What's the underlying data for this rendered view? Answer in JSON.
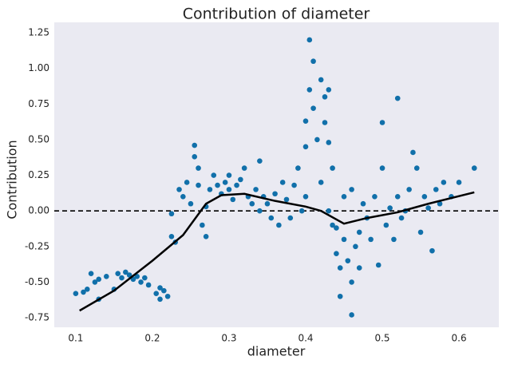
{
  "chart_data": {
    "type": "scatter",
    "title": "Contribution of diameter",
    "x_label": "diameter",
    "y_label": "Contribution",
    "xlim": [
      0.072,
      0.652
    ],
    "ylim": [
      -0.817,
      1.323
    ],
    "xticks": [
      0.1,
      0.2,
      0.3,
      0.4,
      0.5,
      0.6
    ],
    "yticks": [
      1.25,
      {
        "value": 1,
        "label": "1.00"
      },
      0.75,
      {
        "value": 0.5,
        "label": "0.50"
      },
      0.25,
      {
        "value": 0,
        "label": "0.00"
      },
      -0.25,
      {
        "value": -0.5,
        "label": "-0.50"
      },
      -0.75
    ],
    "grid": false,
    "hline": 0,
    "series": [
      {
        "color": "#1170aa",
        "x": [
          0.1,
          0.11,
          0.115,
          0.12,
          0.125,
          0.13,
          0.13,
          0.14,
          0.15,
          0.155,
          0.16,
          0.165,
          0.17,
          0.175,
          0.18,
          0.185,
          0.19,
          0.195,
          0.205,
          0.21,
          0.215,
          0.22,
          0.21,
          0.225,
          0.23,
          0.225,
          0.235,
          0.24,
          0.245,
          0.25,
          0.255,
          0.255,
          0.26,
          0.26,
          0.265,
          0.27,
          0.27,
          0.275,
          0.28,
          0.285,
          0.29,
          0.295,
          0.3,
          0.3,
          0.305,
          0.31,
          0.315,
          0.32,
          0.325,
          0.33,
          0.335,
          0.34,
          0.34,
          0.345,
          0.35,
          0.355,
          0.36,
          0.365,
          0.37,
          0.375,
          0.38,
          0.385,
          0.39,
          0.395,
          0.4,
          0.4,
          0.4,
          0.405,
          0.41,
          0.405,
          0.41,
          0.415,
          0.42,
          0.425,
          0.425,
          0.43,
          0.43,
          0.435,
          0.42,
          0.43,
          0.435,
          0.44,
          0.445,
          0.45,
          0.455,
          0.46,
          0.46,
          0.465,
          0.47,
          0.47,
          0.445,
          0.44,
          0.45,
          0.46,
          0.475,
          0.48,
          0.485,
          0.49,
          0.495,
          0.5,
          0.5,
          0.505,
          0.51,
          0.515,
          0.52,
          0.52,
          0.525,
          0.53,
          0.535,
          0.54,
          0.545,
          0.55,
          0.555,
          0.56,
          0.565,
          0.57,
          0.575,
          0.58,
          0.59,
          0.6,
          0.62
        ],
        "values": [
          -0.58,
          -0.57,
          -0.55,
          -0.44,
          -0.5,
          -0.62,
          -0.48,
          -0.46,
          -0.55,
          -0.44,
          -0.47,
          -0.43,
          -0.45,
          -0.48,
          -0.46,
          -0.5,
          -0.47,
          -0.52,
          -0.58,
          -0.62,
          -0.56,
          -0.6,
          -0.54,
          -0.18,
          -0.22,
          -0.02,
          0.15,
          0.1,
          0.2,
          0.05,
          0.46,
          0.38,
          0.3,
          0.18,
          -0.1,
          -0.18,
          0.03,
          0.15,
          0.25,
          0.18,
          0.12,
          0.2,
          0.15,
          0.25,
          0.08,
          0.18,
          0.22,
          0.3,
          0.1,
          0.05,
          0.15,
          0.35,
          0,
          0.1,
          0.05,
          -0.05,
          0.12,
          -0.1,
          0.2,
          0.08,
          -0.05,
          0.18,
          0.3,
          0,
          0.1,
          0.45,
          0.63,
          1.2,
          1.05,
          0.85,
          0.72,
          0.5,
          0.92,
          0.8,
          0.62,
          0.85,
          0.48,
          0.3,
          0.2,
          0,
          -0.1,
          -0.3,
          -0.4,
          -0.2,
          -0.35,
          -0.5,
          -0.73,
          -0.25,
          -0.15,
          -0.4,
          -0.6,
          -0.12,
          0.1,
          0.15,
          0.05,
          -0.05,
          -0.2,
          0.1,
          -0.38,
          0.62,
          0.3,
          -0.1,
          0.02,
          -0.2,
          0.79,
          0.1,
          -0.05,
          0,
          0.15,
          0.41,
          0.3,
          -0.15,
          0.1,
          0.02,
          -0.28,
          0.15,
          0.05,
          0.2,
          0.1,
          0.2,
          0.3
        ]
      }
    ],
    "trend": {
      "color": "#000000",
      "x": [
        0.105,
        0.15,
        0.2,
        0.24,
        0.27,
        0.29,
        0.32,
        0.36,
        0.4,
        0.42,
        0.45,
        0.48,
        0.52,
        0.56,
        0.62
      ],
      "values": [
        -0.7,
        -0.56,
        -0.35,
        -0.17,
        0.05,
        0.11,
        0.12,
        0.07,
        0.03,
        0,
        -0.09,
        -0.05,
        -0.01,
        0.05,
        0.13
      ]
    }
  }
}
